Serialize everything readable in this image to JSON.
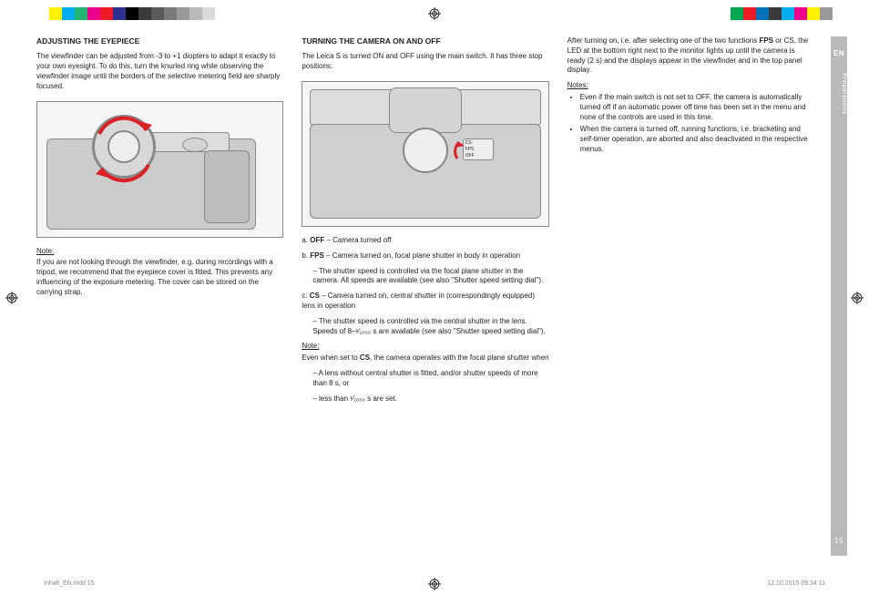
{
  "colorbars": {
    "left": [
      "#ffffff",
      "#fef200",
      "#00aeef",
      "#23b573",
      "#ec008c",
      "#ed1c24",
      "#2e3192",
      "#000000",
      "#3a3a3a",
      "#5a5a5a",
      "#7a7a7a",
      "#9a9a9a",
      "#bababa",
      "#dadada"
    ],
    "right": [
      "#00a651",
      "#ed1c24",
      "#0072bc",
      "#3a3a3a",
      "#00aeef",
      "#ec008c",
      "#fef200",
      "#9a9a9a"
    ]
  },
  "sideTab": {
    "lang": "EN",
    "section": "Preparations",
    "page": "15"
  },
  "footer": {
    "left": "Inhalt_EN.indd   15",
    "right": "12.10.2015   09:34:11"
  },
  "col1": {
    "heading": "ADJUSTING THE EYEPIECE",
    "p1": "The viewfinder can be adjusted from -3 to +1 diopters to adapt it exactly to your own eyesight. To do this, turn the knurled ring while observing the viewfinder image until the borders of the selective metering field are sharply focused.",
    "noteLabel": "Note:",
    "noteText": "If you are not looking through the viewfinder, e.g. during recordings with a tripod, we recommend that the eyepiece cover is fitted. This prevents any influencing of the exposure metering. The cover can be stored on the carrying strap."
  },
  "col2": {
    "heading": "TURNING THE CAMERA ON AND OFF",
    "p1": "The Leica S is turned ON and OFF using the main switch. It has three stop positions:",
    "switchLabels": {
      "a": "CS",
      "b": "FPS",
      "c": "OFF"
    },
    "itemA_pre": "a. ",
    "itemA_bold": "OFF",
    "itemA_post": " – Camera turned off",
    "itemB_pre": "b. ",
    "itemB_bold": "FPS",
    "itemB_post": " – Camera turned on, focal plane shutter in body in operation",
    "itemB_sub": "– The shutter speed is controlled via the focal plane shutter in the camera. All speeds are available (see also \"Shutter speed setting dial\").",
    "itemC_pre": "c. ",
    "itemC_bold": "CS",
    "itemC_post": " – Camera turned on, central shutter in (correspondingly equipped) lens in operation",
    "itemC_sub": "– The shutter speed is controlled via the central shutter in the lens. Speeds of 8–¹⁄₁₀₀₀ s are available (see also \"Shutter speed setting dial\").",
    "noteLabel": "Note:",
    "note_pre": "Even when set to ",
    "note_bold": "CS",
    "note_post": ", the camera operates with the focal plane shutter when",
    "noteSub1": "– A lens without central shutter is fitted, and/or shutter speeds of more than 8 s, or",
    "noteSub2": "– less than ¹⁄₁₀₀₀ s are set."
  },
  "col3": {
    "p1_pre": "After turning on, i.e. after selecting one of the two functions ",
    "p1_b1": "FPS",
    "p1_mid": " or CS, the LED at the bottom right next to the monitor lights up until the camera is ready (2 s) and the displays appear in the viewfinder and in the top panel display.",
    "notesLabel": "Notes:",
    "bullet1": "Even if the main switch is not set to OFF, the camera is automatically turned off if an automatic power off time has been set in the menu and none of the controls are used in this time.",
    "bullet2": "When the camera is turned off, running functions, i.e. bracketing and self-timer operation, are aborted and also deactivated in the respective menus."
  },
  "arrowColor": "#da2128"
}
